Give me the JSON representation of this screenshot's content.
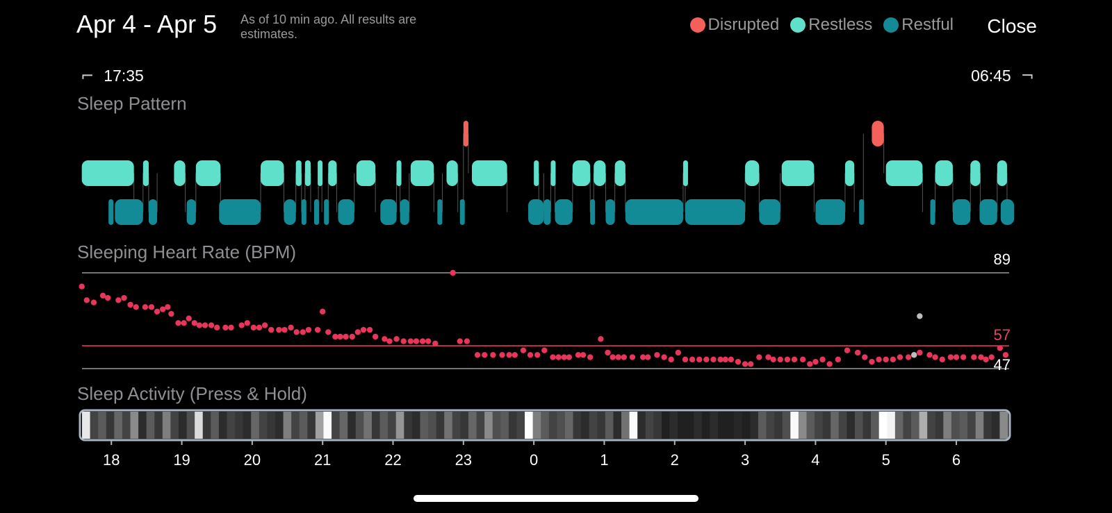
{
  "header": {
    "title": "Apr 4 - Apr 5",
    "note": "As of 10 min ago. All results are estimates.",
    "close_label": "Close"
  },
  "legend": [
    {
      "label": "Disrupted",
      "color": "#f4605a"
    },
    {
      "label": "Restless",
      "color": "#5fe0cb"
    },
    {
      "label": "Restful",
      "color": "#138b97"
    }
  ],
  "time_range": {
    "start": "17:35",
    "end": "06:45"
  },
  "sections": {
    "sleep_pattern": "Sleep Pattern",
    "heart_rate": "Sleeping Heart Rate (BPM)",
    "activity": "Sleep Activity (Press & Hold)"
  },
  "sleep_pattern": {
    "stages": [
      "disrupted",
      "restless",
      "restful"
    ],
    "segments": [
      [
        "restless",
        17.58,
        18.32
      ],
      [
        "restful",
        17.96,
        18.02
      ],
      [
        "restful",
        18.05,
        18.45
      ],
      [
        "restless",
        18.45,
        18.53
      ],
      [
        "restful",
        18.53,
        18.65
      ],
      [
        "restless",
        18.89,
        19.05
      ],
      [
        "restful",
        19.07,
        19.2
      ],
      [
        "restless",
        19.2,
        19.55
      ],
      [
        "restful",
        19.53,
        20.12
      ],
      [
        "restless",
        20.12,
        20.45
      ],
      [
        "restful",
        20.45,
        20.62
      ],
      [
        "restless",
        20.62,
        20.7
      ],
      [
        "restful",
        20.7,
        20.75
      ],
      [
        "restless",
        20.75,
        20.83
      ],
      [
        "restful",
        20.88,
        20.94
      ],
      [
        "restless",
        20.93,
        20.99
      ],
      [
        "restful",
        21.02,
        21.08
      ],
      [
        "restless",
        21.08,
        21.2
      ],
      [
        "restful",
        21.22,
        21.45
      ],
      [
        "restless",
        21.48,
        21.75
      ],
      [
        "restful",
        21.82,
        22.05
      ],
      [
        "restless",
        22.05,
        22.1
      ],
      [
        "restful",
        22.1,
        22.23
      ],
      [
        "restless",
        22.25,
        22.58
      ],
      [
        "restful",
        22.63,
        22.7
      ],
      [
        "restless",
        22.76,
        22.92
      ],
      [
        "restful",
        22.95,
        23.0
      ],
      [
        "disrupted",
        23.0,
        23.07
      ],
      [
        "restless",
        23.12,
        23.62
      ],
      [
        "restful",
        23.92,
        24.14
      ],
      [
        "restless",
        24.0,
        24.07
      ],
      [
        "restful",
        24.14,
        24.24
      ],
      [
        "restless",
        24.24,
        24.3
      ],
      [
        "restful",
        24.3,
        24.55
      ],
      [
        "restless",
        24.55,
        24.8
      ],
      [
        "restful",
        24.8,
        24.85
      ],
      [
        "restless",
        24.85,
        25.02
      ],
      [
        "restful",
        25.02,
        25.15
      ],
      [
        "restless",
        25.15,
        25.3
      ],
      [
        "restful",
        25.3,
        26.12
      ],
      [
        "restless",
        26.12,
        26.15
      ],
      [
        "restful",
        26.15,
        27.0
      ],
      [
        "restless",
        27.0,
        27.2
      ],
      [
        "restful",
        27.2,
        27.5
      ],
      [
        "restless",
        27.52,
        27.98
      ],
      [
        "restful",
        28.0,
        28.42
      ],
      [
        "restless",
        28.42,
        28.55
      ],
      [
        "restful",
        28.62,
        28.68
      ],
      [
        "disrupted",
        28.8,
        28.97
      ],
      [
        "restless",
        29.0,
        29.52
      ],
      [
        "restful",
        29.63,
        29.7
      ],
      [
        "restless",
        29.7,
        29.95
      ],
      [
        "restful",
        29.95,
        30.2
      ],
      [
        "restless",
        30.2,
        30.34
      ],
      [
        "restful",
        30.33,
        30.58
      ],
      [
        "restless",
        30.58,
        30.72
      ],
      [
        "restful",
        30.63,
        30.82
      ]
    ]
  },
  "heart_rate": {
    "max_label": "89",
    "avg_label": "57",
    "min_label": "47",
    "max": 89,
    "avg": 57,
    "min": 47,
    "points": [
      [
        17.58,
        83
      ],
      [
        17.65,
        77
      ],
      [
        17.75,
        76
      ],
      [
        17.88,
        79
      ],
      [
        17.95,
        78
      ],
      [
        18.1,
        77
      ],
      [
        18.18,
        78
      ],
      [
        18.27,
        75
      ],
      [
        18.35,
        74
      ],
      [
        18.48,
        74
      ],
      [
        18.57,
        74
      ],
      [
        18.65,
        72
      ],
      [
        18.73,
        73
      ],
      [
        18.8,
        74
      ],
      [
        18.85,
        71
      ],
      [
        18.95,
        67
      ],
      [
        19.03,
        67
      ],
      [
        19.1,
        69
      ],
      [
        19.18,
        67
      ],
      [
        19.25,
        66
      ],
      [
        19.33,
        66
      ],
      [
        19.42,
        66
      ],
      [
        19.5,
        65
      ],
      [
        19.62,
        65
      ],
      [
        19.7,
        65
      ],
      [
        19.85,
        66
      ],
      [
        19.93,
        67
      ],
      [
        20.02,
        65
      ],
      [
        20.1,
        65
      ],
      [
        20.18,
        66
      ],
      [
        20.27,
        64
      ],
      [
        20.38,
        64
      ],
      [
        20.46,
        64
      ],
      [
        20.55,
        65
      ],
      [
        20.63,
        63
      ],
      [
        20.72,
        63
      ],
      [
        20.8,
        64
      ],
      [
        20.93,
        64
      ],
      [
        21.0,
        72
      ],
      [
        21.08,
        63
      ],
      [
        21.18,
        61
      ],
      [
        21.25,
        61
      ],
      [
        21.33,
        61
      ],
      [
        21.42,
        61
      ],
      [
        21.5,
        63
      ],
      [
        21.58,
        64
      ],
      [
        21.67,
        64
      ],
      [
        21.75,
        61
      ],
      [
        21.88,
        60
      ],
      [
        21.95,
        59
      ],
      [
        22.05,
        60
      ],
      [
        22.15,
        59
      ],
      [
        22.25,
        59
      ],
      [
        22.33,
        59
      ],
      [
        22.42,
        59
      ],
      [
        22.5,
        59
      ],
      [
        22.6,
        58
      ],
      [
        22.95,
        59
      ],
      [
        23.05,
        59
      ],
      [
        23.2,
        53
      ],
      [
        23.3,
        53
      ],
      [
        23.42,
        53
      ],
      [
        23.55,
        53
      ],
      [
        23.65,
        53
      ],
      [
        23.73,
        53
      ],
      [
        23.85,
        55
      ],
      [
        23.95,
        53
      ],
      [
        24.05,
        53
      ],
      [
        24.15,
        55
      ],
      [
        24.27,
        52
      ],
      [
        24.35,
        52
      ],
      [
        24.43,
        52
      ],
      [
        24.5,
        52
      ],
      [
        24.63,
        53
      ],
      [
        24.7,
        53
      ],
      [
        24.8,
        52
      ],
      [
        24.95,
        60
      ],
      [
        25.05,
        54
      ],
      [
        25.12,
        52
      ],
      [
        25.2,
        52
      ],
      [
        25.28,
        52
      ],
      [
        25.4,
        52
      ],
      [
        25.55,
        52
      ],
      [
        25.62,
        52
      ],
      [
        25.75,
        53
      ],
      [
        25.85,
        52
      ],
      [
        25.95,
        51
      ],
      [
        26.05,
        54
      ],
      [
        26.15,
        51
      ],
      [
        26.25,
        51
      ],
      [
        26.35,
        51
      ],
      [
        26.45,
        51
      ],
      [
        26.55,
        51
      ],
      [
        26.65,
        51
      ],
      [
        26.72,
        51
      ],
      [
        26.8,
        51
      ],
      [
        26.9,
        50
      ],
      [
        27.0,
        49
      ],
      [
        27.08,
        49
      ],
      [
        27.2,
        52
      ],
      [
        27.33,
        52
      ],
      [
        27.4,
        51
      ],
      [
        27.5,
        51
      ],
      [
        27.6,
        51
      ],
      [
        27.7,
        51
      ],
      [
        27.82,
        51
      ],
      [
        27.92,
        49
      ],
      [
        28.0,
        50
      ],
      [
        28.1,
        51
      ],
      [
        28.2,
        49
      ],
      [
        28.32,
        51
      ],
      [
        28.45,
        55
      ],
      [
        28.6,
        54
      ],
      [
        28.7,
        52
      ],
      [
        28.8,
        50
      ],
      [
        28.9,
        51
      ],
      [
        29.0,
        51
      ],
      [
        29.1,
        51
      ],
      [
        29.2,
        52
      ],
      [
        29.32,
        52
      ],
      [
        29.4,
        53
      ],
      [
        29.48,
        54
      ],
      [
        29.62,
        53
      ],
      [
        29.7,
        52
      ],
      [
        29.8,
        51
      ],
      [
        29.92,
        52
      ],
      [
        30.0,
        52
      ],
      [
        30.1,
        52
      ],
      [
        30.25,
        52
      ],
      [
        30.35,
        52
      ],
      [
        30.42,
        51
      ],
      [
        30.5,
        52
      ],
      [
        30.62,
        56
      ],
      [
        30.7,
        53
      ]
    ],
    "outliers": [
      [
        22.85,
        89
      ],
      [
        29.48,
        70
      ],
      [
        29.4,
        53
      ]
    ]
  },
  "activity": {
    "levels": [
      0.9,
      0.2,
      0.3,
      0.15,
      0.35,
      0.2,
      0.5,
      0.1,
      0.3,
      0.15,
      0.45,
      0.2,
      0.1,
      0.25,
      0.85,
      0.15,
      0.3,
      0.1,
      0.2,
      0.15,
      0.1,
      0.35,
      0.2,
      0.15,
      0.1,
      0.45,
      0.2,
      0.3,
      0.15,
      0.6,
      0.98,
      0.2,
      0.35,
      0.1,
      0.25,
      0.4,
      0.15,
      0.3,
      0.2,
      0.55,
      0.15,
      0.1,
      0.3,
      0.25,
      0.15,
      0.4,
      0.2,
      0.15,
      0.35,
      0.2,
      0.5,
      0.25,
      0.3,
      0.15,
      0.2,
      1.0,
      0.45,
      0.3,
      0.2,
      0.25,
      0.35,
      0.15,
      0.1,
      0.2,
      0.15,
      0.3,
      0.1,
      0.4,
      0.98,
      0.1,
      0.2,
      0.15,
      0.05,
      0.1,
      0.05,
      0.05,
      0.1,
      0.05,
      0.1,
      0.05,
      0.05,
      0.08,
      0.05,
      0.1,
      0.3,
      0.2,
      0.15,
      0.25,
      0.98,
      0.5,
      0.3,
      0.2,
      0.15,
      0.35,
      0.2,
      0.1,
      0.25,
      0.15,
      0.3,
      1.0,
      0.95,
      0.35,
      0.2,
      0.3,
      0.65,
      0.2,
      0.15,
      0.45,
      0.25,
      0.3,
      0.2,
      0.45,
      0.15,
      0.1,
      0.5
    ]
  },
  "x_axis": {
    "ticks": [
      "18",
      "19",
      "20",
      "21",
      "22",
      "23",
      "0",
      "1",
      "2",
      "3",
      "4",
      "5",
      "6"
    ]
  }
}
